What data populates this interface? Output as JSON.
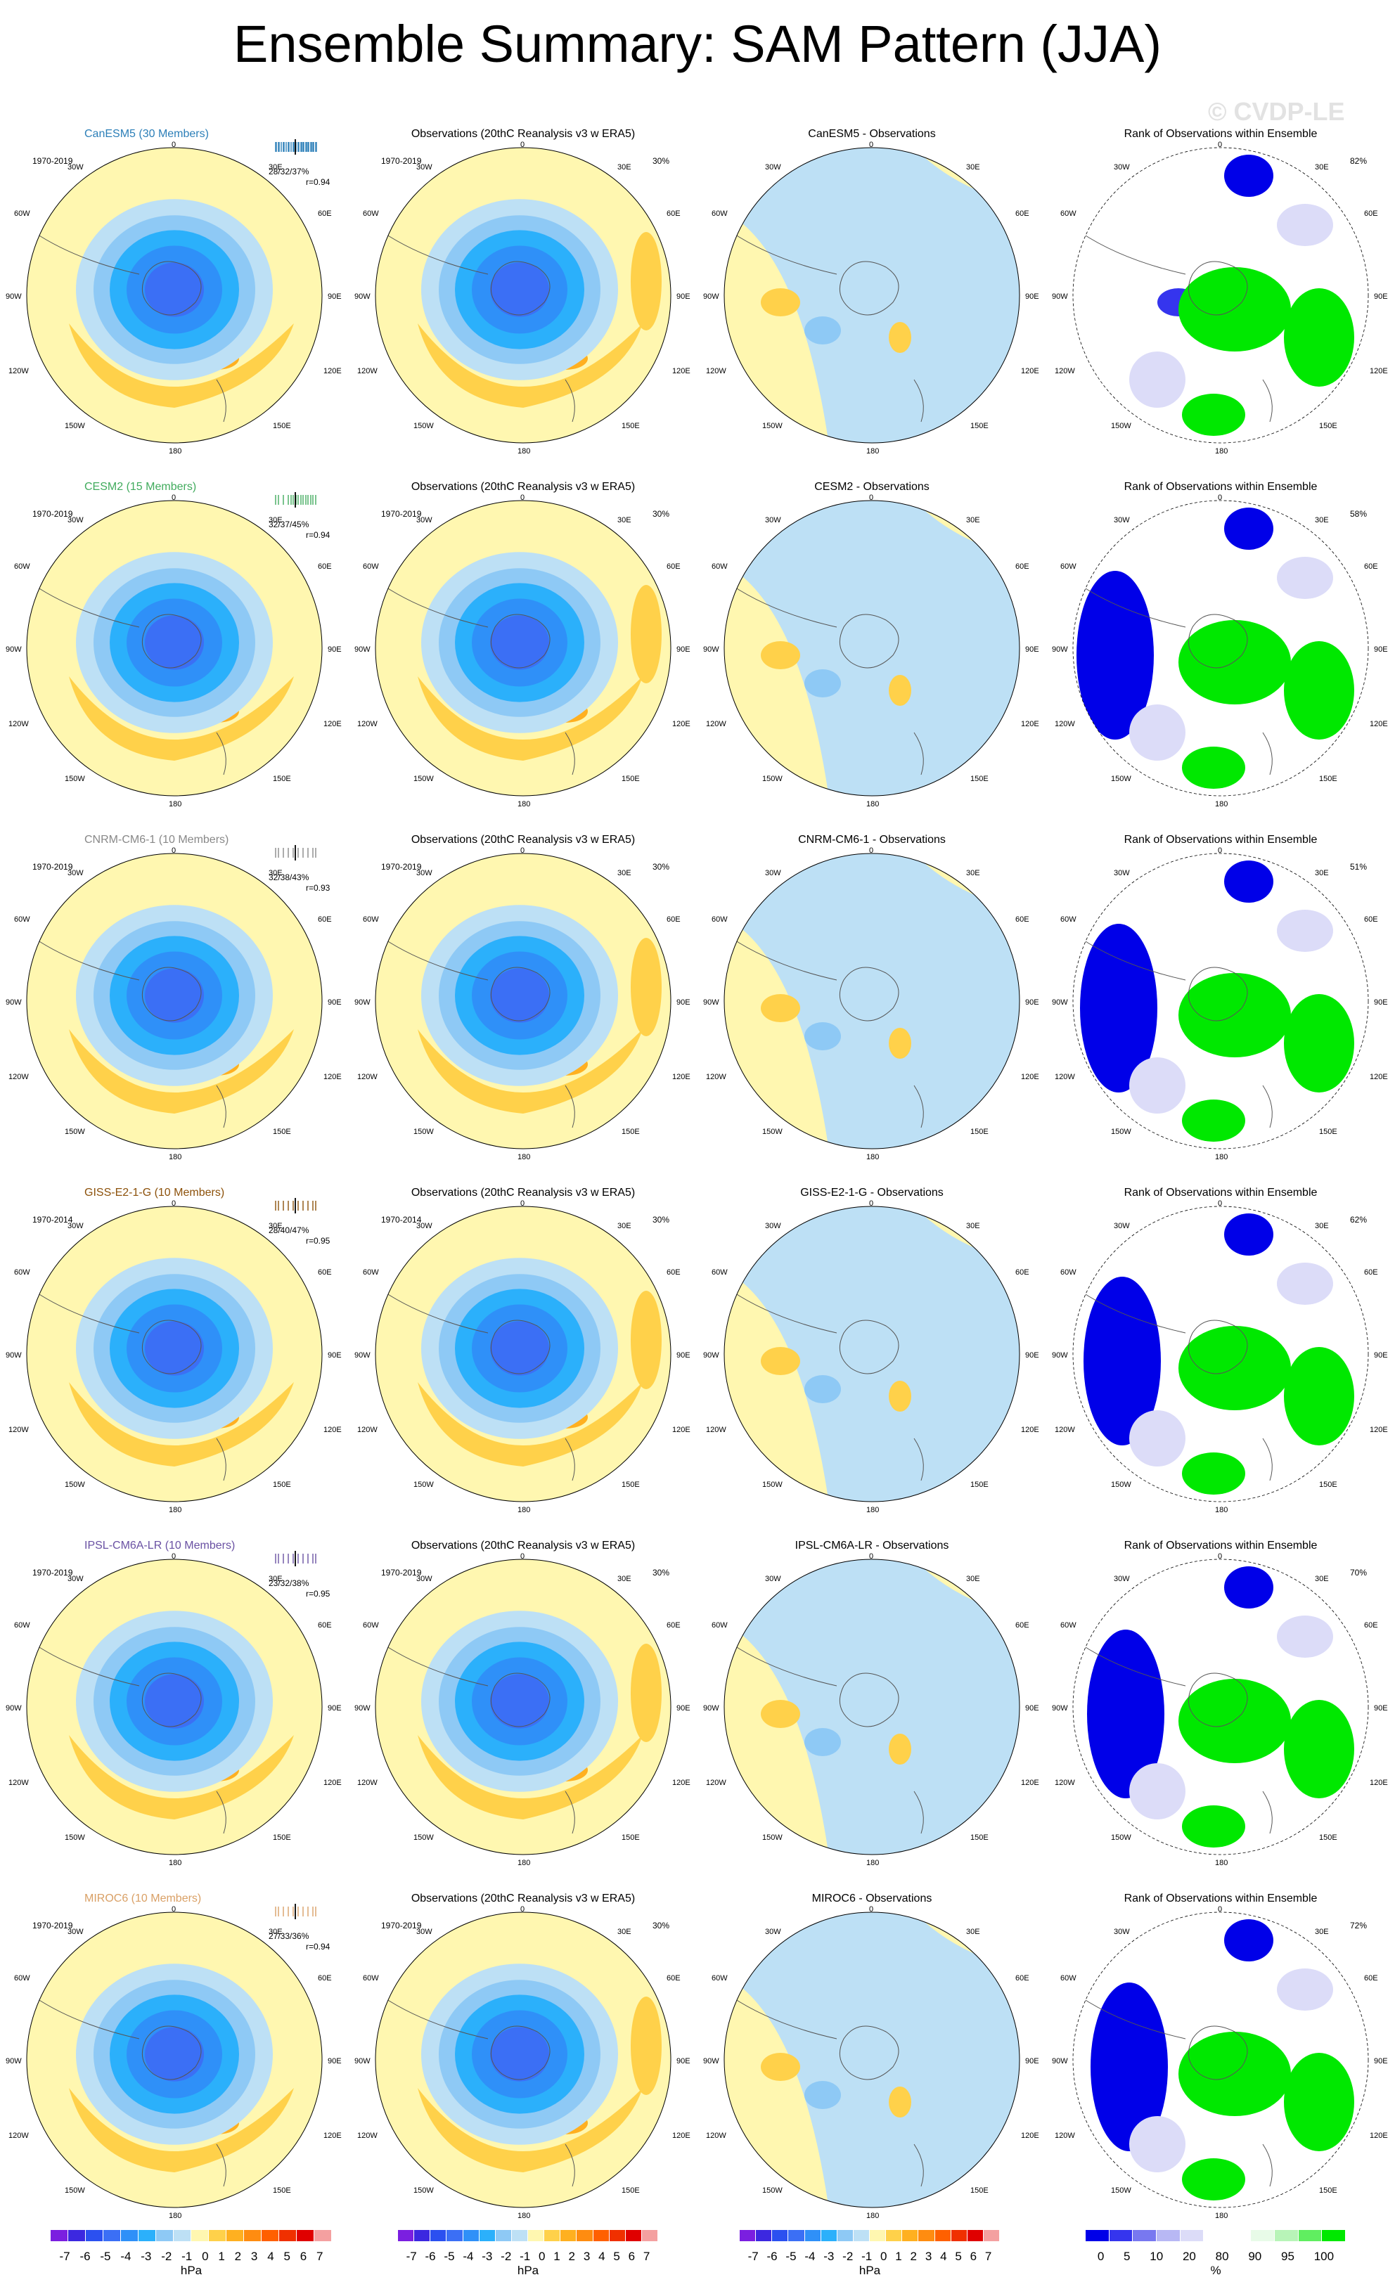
{
  "title": "Ensemble Summary: SAM Pattern (JJA)",
  "watermark": "© CVDP-LE",
  "obs_title": "Observations (20thC Reanalysis v3 w ERA5)",
  "rank_title": "Rank of Observations within Ensemble",
  "lon_labels": {
    "top": "0",
    "lat": "30%",
    "n30w": "30W",
    "n30e": "30E",
    "n60w": "60W",
    "n60e": "60E",
    "n90w": "90W",
    "n90e": "90E",
    "n120w": "120W",
    "n120e": "120E",
    "n150w": "150W",
    "n150e": "150E",
    "bottom": "180"
  },
  "rows": [
    {
      "model": "CanESM5 (30 Members)",
      "model_color": "#2c7fb8",
      "diff": "CanESM5 - Observations",
      "years": "1970-2019",
      "obs_years": "1970-2019",
      "stat": "28/32/37%",
      "r": "r=0.94",
      "rank_pct": "82%"
    },
    {
      "model": "CESM2 (15 Members)",
      "model_color": "#41ab5d",
      "diff": "CESM2 - Observations",
      "years": "1970-2019",
      "obs_years": "1970-2019",
      "stat": "32/37/45%",
      "r": "r=0.94",
      "rank_pct": "58%"
    },
    {
      "model": "CNRM-CM6-1 (10 Members)",
      "model_color": "#888888",
      "diff": "CNRM-CM6-1 - Observations",
      "years": "1970-2019",
      "obs_years": "1970-2019",
      "stat": "32/38/43%",
      "r": "r=0.93",
      "rank_pct": "51%"
    },
    {
      "model": "GISS-E2-1-G (10 Members)",
      "model_color": "#8c510a",
      "diff": "GISS-E2-1-G - Observations",
      "years": "1970-2014",
      "obs_years": "1970-2014",
      "stat": "28/40/47%",
      "r": "r=0.95",
      "rank_pct": "62%"
    },
    {
      "model": "IPSL-CM6A-LR (10 Members)",
      "model_color": "#6a51a3",
      "diff": "IPSL-CM6A-LR - Observations",
      "years": "1970-2019",
      "obs_years": "1970-2019",
      "stat": "23/32/38%",
      "r": "r=0.95",
      "rank_pct": "70%"
    },
    {
      "model": "MIROC6 (10 Members)",
      "model_color": "#d9a066",
      "diff": "MIROC6 - Observations",
      "years": "1970-2019",
      "obs_years": "1970-2019",
      "stat": "27/33/36%",
      "r": "r=0.94",
      "rank_pct": "72%"
    }
  ],
  "colorbar_hpa": {
    "colors": [
      "#7b1fe0",
      "#3c28e0",
      "#2b50f0",
      "#3b6ff5",
      "#2f90f8",
      "#2bb0fb",
      "#8ec9f5",
      "#bde0f5",
      "#fff7b0",
      "#ffd14a",
      "#ffb020",
      "#ff8c10",
      "#ff6000",
      "#f03000",
      "#e00000",
      "#f4a0a0"
    ],
    "ticks": [
      "-7",
      "-6",
      "-5",
      "-4",
      "-3",
      "-2",
      "-1",
      "0",
      "1",
      "2",
      "3",
      "4",
      "5",
      "6",
      "7"
    ],
    "unit": "hPa"
  },
  "colorbar_rank": {
    "colors": [
      "#0000e8",
      "#3535ee",
      "#7878f0",
      "#b8b8f4",
      "#dcdcf8",
      "#ffffff",
      "#ffffff",
      "#e8fbe8",
      "#b8f4b8",
      "#60ee60",
      "#00e800"
    ],
    "ticks": [
      "0",
      "5",
      "10",
      "20",
      "80",
      "90",
      "95",
      "100"
    ],
    "unit": "%"
  }
}
